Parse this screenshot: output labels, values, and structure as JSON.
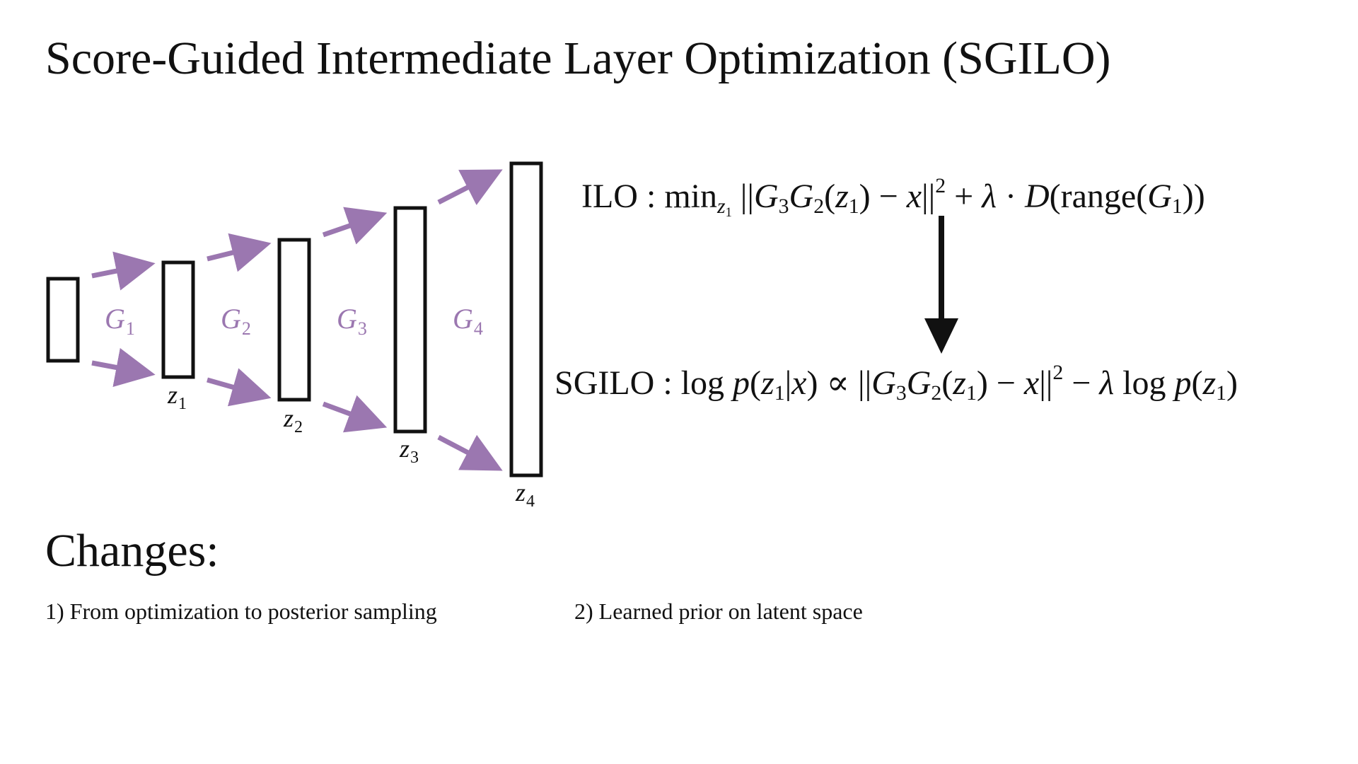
{
  "title": "Score-Guided Intermediate Layer Optimization (SGILO)",
  "colors": {
    "arrow": "#9b77b0",
    "stroke": "#111111",
    "text": "#111111"
  },
  "network": {
    "layers": [
      {
        "label_base": "",
        "label_sub": ""
      },
      {
        "label_base": "z",
        "label_sub": "1"
      },
      {
        "label_base": "z",
        "label_sub": "2"
      },
      {
        "label_base": "z",
        "label_sub": "3"
      },
      {
        "label_base": "z",
        "label_sub": "4"
      }
    ],
    "generators": [
      {
        "base": "G",
        "sub": "1"
      },
      {
        "base": "G",
        "sub": "2"
      },
      {
        "base": "G",
        "sub": "3"
      },
      {
        "base": "G",
        "sub": "4"
      }
    ]
  },
  "equations": {
    "ilo": {
      "name": "ILO",
      "colon": " : ",
      "min": "min",
      "min_sub_base": "z",
      "min_sub_sub": "1",
      "open_norm": " ||",
      "g3": "G",
      "g3_sub": "3",
      "g2": "G",
      "g2_sub": "2",
      "arg_open": "(",
      "z": "z",
      "z_sub": "1",
      "arg_close": ")",
      "minus": " − ",
      "x": "x",
      "close_norm": "||",
      "power": "2",
      "plus": " + ",
      "lambda": "λ",
      "dot": " · ",
      "d": "D",
      "range_open": "(range(",
      "g1": "G",
      "g1_sub": "1",
      "range_close": "))"
    },
    "sgilo": {
      "name": "SGILO",
      "colon": " : ",
      "log1": "log ",
      "p1": "p",
      "paren1_open": "(",
      "z1": "z",
      "z1_sub": "1",
      "bar": "|",
      "x1": "x",
      "paren1_close": ")",
      "propto": " ∝ ",
      "open_norm": "||",
      "g3": "G",
      "g3_sub": "3",
      "g2": "G",
      "g2_sub": "2",
      "arg_open": "(",
      "z2": "z",
      "z2_sub": "1",
      "arg_close": ")",
      "minus": " − ",
      "x2": "x",
      "close_norm": "||",
      "power": "2",
      "minus2": " − ",
      "lambda": "λ",
      "log2": " log ",
      "p2": "p",
      "paren2_open": "(",
      "z3": "z",
      "z3_sub": "1",
      "paren2_close": ")"
    }
  },
  "changes": {
    "heading": "Changes:",
    "items": [
      "1) From optimization to posterior sampling",
      "2) Learned prior on latent space"
    ]
  }
}
